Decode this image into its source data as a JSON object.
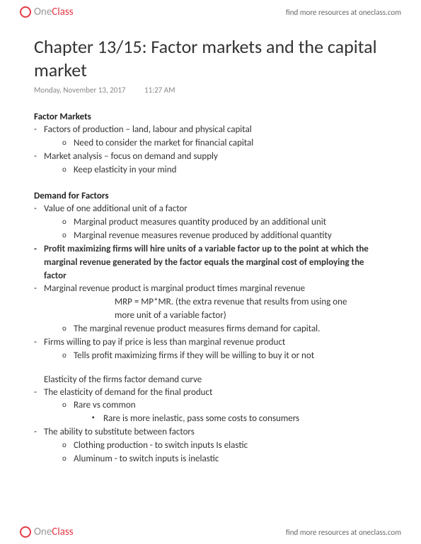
{
  "brand": {
    "one": "One",
    "class": "Class"
  },
  "header_link": "find more resources at oneclass.com",
  "title": "Chapter 13/15: Factor markets and the capital market",
  "meta": {
    "date": "Monday, November 13, 2017",
    "time": "11:27 AM"
  },
  "sections": {
    "factor_markets": {
      "heading": "Factor Markets",
      "b1": "Factors of production – land, labour and physical capital",
      "b1a": "Need to consider the market for financial capital",
      "b2": "Market analysis – focus on demand and supply",
      "b2a": "Keep elasticity in your mind"
    },
    "demand_factors": {
      "heading": "Demand for Factors",
      "b1": "Value of one additional unit of a factor",
      "b1a": "Marginal product measures quantity produced by an additional unit",
      "b1b": "Marginal revenue measures revenue produced by additional quantity",
      "b2": "Profit maximizing firms will hire units of a variable factor up to the point at which the marginal revenue generated by the factor equals the marginal cost of employing the factor",
      "b3": "Marginal revenue product is marginal product times marginal revenue",
      "b3line1": "MRP = MP*MR.   (the extra revenue that results from using one",
      "b3line2": "more unit of a variable factor)",
      "b3a": "The marginal revenue product measures firms demand for capital.",
      "b4": "Firms willing to pay if price is less than marginal revenue product",
      "b4a": "Tells profit maximizing firms if they will be willing to buy it or not"
    },
    "elasticity": {
      "heading": "Elasticity of the firms factor demand curve",
      "b1": "The elasticity of demand for the final product",
      "b1a": "Rare vs common",
      "b1a1": "Rare is more inelastic, pass some costs to consumers",
      "b2": "The ability to substitute between factors",
      "b2a": "Clothing production - to switch inputs Is elastic",
      "b2b": "Aluminum - to switch inputs is inelastic"
    }
  }
}
